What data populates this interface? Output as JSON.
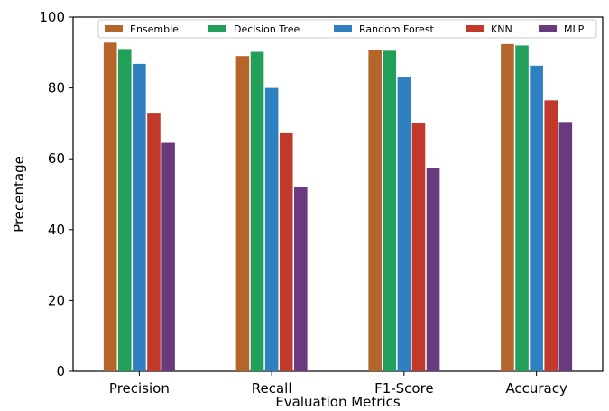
{
  "chart_data": {
    "type": "bar",
    "title": "",
    "xlabel": "Evaluation Metrics",
    "ylabel": "Precentage",
    "categories": [
      "Precision",
      "Recall",
      "F1-Score",
      "Accuracy"
    ],
    "ylim": [
      0,
      100
    ],
    "yticks": [
      0,
      20,
      40,
      60,
      80,
      100
    ],
    "grid": false,
    "legend_position": "top",
    "series": [
      {
        "name": "Ensemble",
        "color": "#b5652a",
        "values": [
          92.8,
          89.0,
          90.8,
          92.4
        ]
      },
      {
        "name": "Decision Tree",
        "color": "#22a05a",
        "values": [
          91.0,
          90.2,
          90.5,
          92.0
        ]
      },
      {
        "name": "Random Forest",
        "color": "#2f80c0",
        "values": [
          86.8,
          80.0,
          83.2,
          86.3
        ]
      },
      {
        "name": "KNN",
        "color": "#c0392b",
        "values": [
          73.0,
          67.2,
          70.0,
          76.5
        ]
      },
      {
        "name": "MLP",
        "color": "#6a3a7e",
        "values": [
          64.5,
          52.0,
          57.5,
          70.4
        ]
      }
    ]
  }
}
